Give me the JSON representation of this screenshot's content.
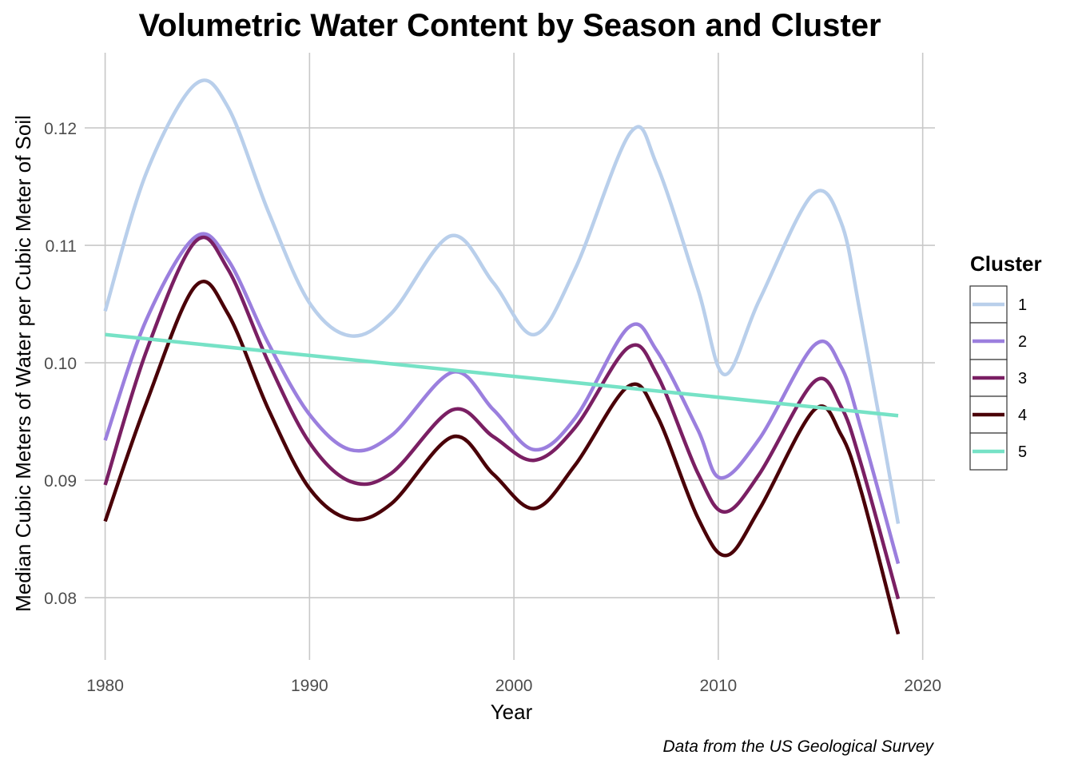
{
  "chart_data": {
    "type": "line",
    "title": "Volumetric Water Content by Season and Cluster",
    "xlabel": "Year",
    "ylabel": "Median Cubic Meters of Water per Cubic Meter of Soil",
    "caption": "Data from the US Geological Survey",
    "xlim": [
      1979.0,
      2020.6
    ],
    "ylim": [
      0.0747,
      0.1264
    ],
    "x_ticks": [
      "1980",
      "1990",
      "2000",
      "2010",
      "2020"
    ],
    "y_ticks": [
      "0.08",
      "0.09",
      "0.10",
      "0.11",
      "0.12"
    ],
    "grid": true,
    "legend": {
      "title": "Cluster",
      "position": "right",
      "entries": [
        "1",
        "2",
        "3",
        "4",
        "5"
      ]
    },
    "series": [
      {
        "name": "1",
        "color": "#b9cfeb",
        "x": [
          1980,
          1982,
          1984.4,
          1986,
          1988,
          1990,
          1992,
          1994,
          1996.9,
          1999,
          2001,
          2003,
          2005.7,
          2007,
          2009,
          2010.3,
          2012,
          2014.6,
          2016,
          2017,
          2018.8
        ],
        "y": [
          0.1044,
          0.1161,
          0.1237,
          0.1218,
          0.1128,
          0.1051,
          0.1023,
          0.1042,
          0.1108,
          0.1068,
          0.1024,
          0.108,
          0.1196,
          0.1168,
          0.1063,
          0.099,
          0.1053,
          0.1143,
          0.112,
          0.1037,
          0.0863
        ]
      },
      {
        "name": "2",
        "color": "#9b7fde",
        "x": [
          1980,
          1982,
          1984.4,
          1986,
          1988,
          1990,
          1992,
          1994,
          1997,
          1999,
          2001,
          2003,
          2005.6,
          2007,
          2009,
          2010.1,
          2012,
          2014.7,
          2016,
          2017,
          2018.8
        ],
        "y": [
          0.0934,
          0.1036,
          0.1107,
          0.1088,
          0.1016,
          0.0956,
          0.0926,
          0.0938,
          0.0992,
          0.096,
          0.0926,
          0.0953,
          0.103,
          0.101,
          0.0943,
          0.0902,
          0.0935,
          0.1015,
          0.0997,
          0.0943,
          0.0829
        ]
      },
      {
        "name": "3",
        "color": "#7a1f63",
        "x": [
          1980,
          1982,
          1984.4,
          1986,
          1988,
          1990,
          1992,
          1994,
          1997,
          1999,
          2001,
          2003,
          2005.6,
          2007,
          2009,
          2010.3,
          2012,
          2014.7,
          2016,
          2017,
          2018.8
        ],
        "y": [
          0.0896,
          0.1009,
          0.1103,
          0.108,
          0.1,
          0.0932,
          0.0899,
          0.0906,
          0.096,
          0.0937,
          0.0917,
          0.0945,
          0.1013,
          0.099,
          0.0906,
          0.0873,
          0.0905,
          0.0984,
          0.0963,
          0.0913,
          0.0799
        ]
      },
      {
        "name": "4",
        "color": "#4a0008",
        "x": [
          1980,
          1982,
          1984.4,
          1986,
          1988,
          1990,
          1992,
          1994,
          1997,
          1999,
          2001,
          2003,
          2005.6,
          2007,
          2009,
          2010.4,
          2012,
          2014.7,
          2016,
          2017,
          2018.8
        ],
        "y": [
          0.0865,
          0.0965,
          0.1065,
          0.1042,
          0.096,
          0.0893,
          0.0867,
          0.088,
          0.0937,
          0.0905,
          0.0876,
          0.0913,
          0.098,
          0.0955,
          0.0868,
          0.0836,
          0.0875,
          0.096,
          0.0939,
          0.089,
          0.0769
        ]
      },
      {
        "name": "5",
        "color": "#76e2c6",
        "x": [
          1980,
          2018.8
        ],
        "y": [
          0.1024,
          0.0955
        ]
      }
    ]
  }
}
